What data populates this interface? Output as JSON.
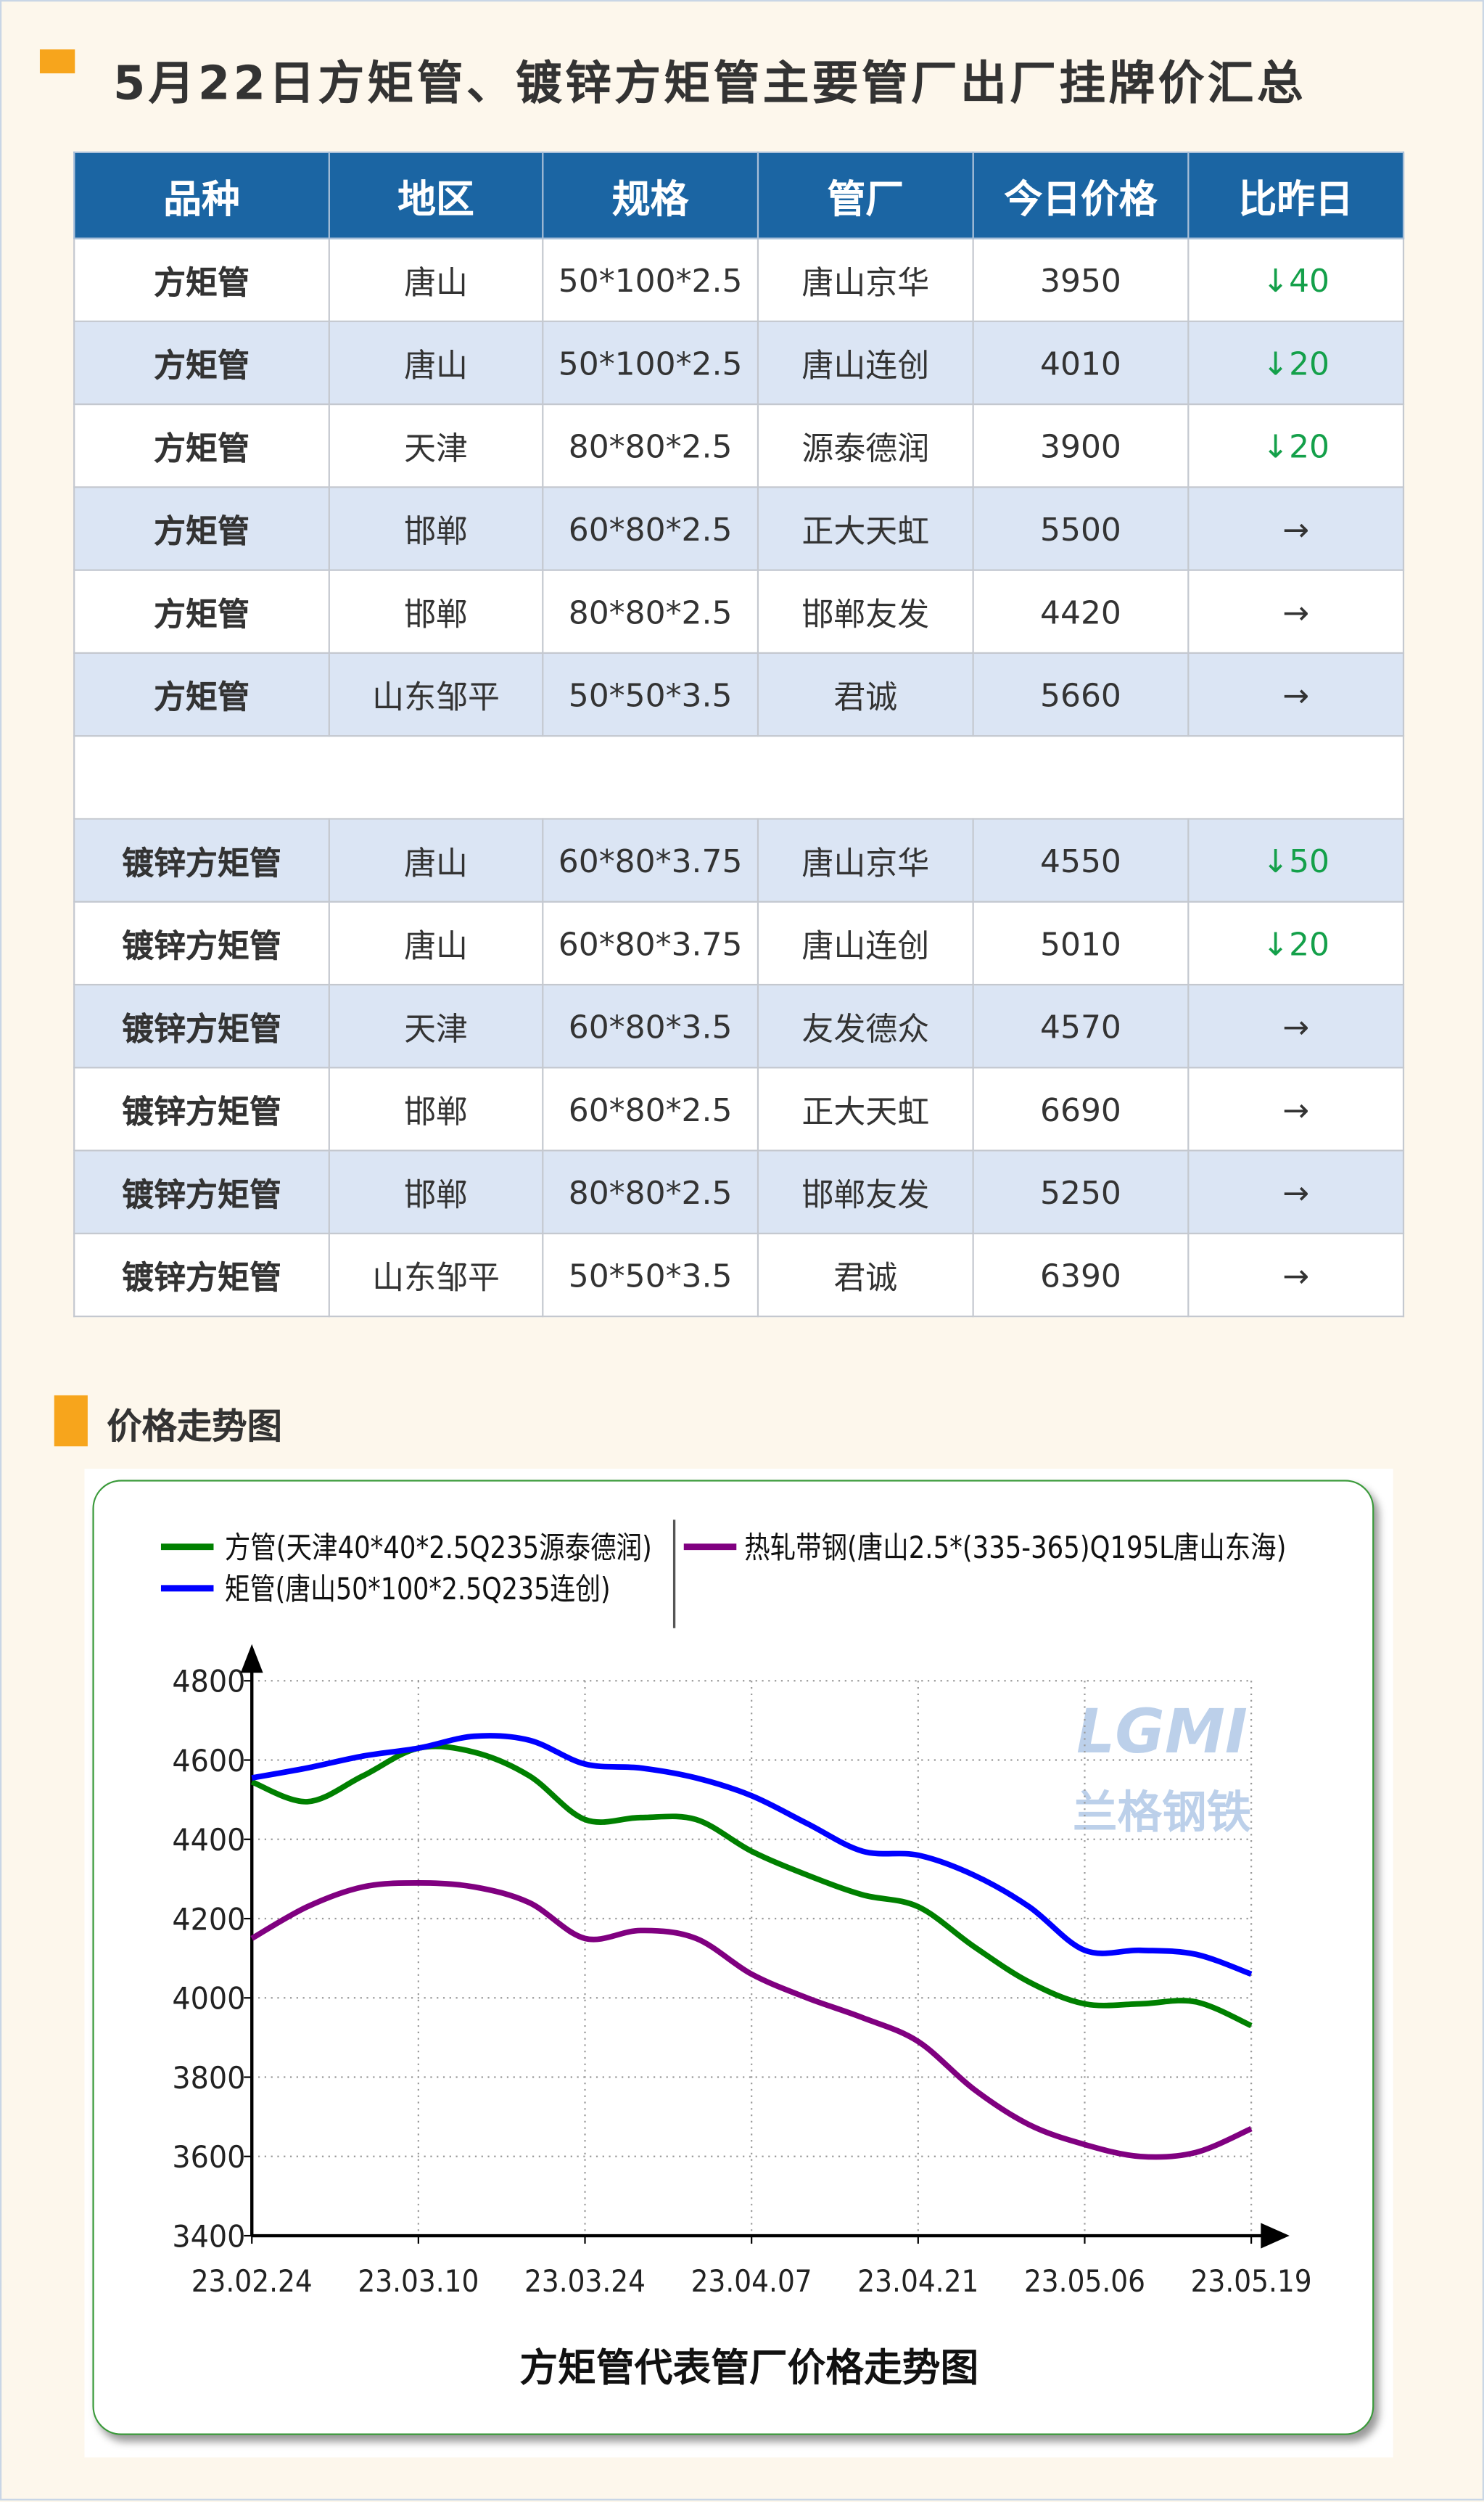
{
  "header": {
    "title": "5月22日方矩管、镀锌方矩管主要管厂出厂挂牌价汇总"
  },
  "table": {
    "header": [
      "品种",
      "地区",
      "规格",
      "管厂",
      "今日价格",
      "比昨日"
    ],
    "groups": [
      {
        "rows": [
          [
            "方矩管",
            "唐山",
            "50*100*2.5",
            "唐山京华",
            "3950",
            "↓40"
          ],
          [
            "方矩管",
            "唐山",
            "50*100*2.5",
            "唐山连创",
            "4010",
            "↓20"
          ],
          [
            "方矩管",
            "天津",
            "80*80*2.5",
            "源泰德润",
            "3900",
            "↓20"
          ],
          [
            "方矩管",
            "邯郸",
            "60*80*2.5",
            "正大天虹",
            "5500",
            "→"
          ],
          [
            "方矩管",
            "邯郸",
            "80*80*2.5",
            "邯郸友发",
            "4420",
            "→"
          ],
          [
            "方矩管",
            "山东邹平",
            "50*50*3.5",
            "君诚",
            "5660",
            "→"
          ]
        ]
      },
      {
        "rows": [
          [
            "镀锌方矩管",
            "唐山",
            "60*80*3.75",
            "唐山京华",
            "4550",
            "↓50"
          ],
          [
            "镀锌方矩管",
            "唐山",
            "60*80*3.75",
            "唐山连创",
            "5010",
            "↓20"
          ],
          [
            "镀锌方矩管",
            "天津",
            "60*80*3.5",
            "友发德众",
            "4570",
            "→"
          ],
          [
            "镀锌方矩管",
            "邯郸",
            "60*80*2.5",
            "正大天虹",
            "6690",
            "→"
          ],
          [
            "镀锌方矩管",
            "邯郸",
            "80*80*2.5",
            "邯郸友发",
            "5250",
            "→"
          ],
          [
            "镀锌方矩管",
            "山东邹平",
            "50*50*3.5",
            "君诚",
            "6390",
            "→"
          ]
        ]
      }
    ]
  },
  "section": {
    "title": "价格走势图"
  },
  "chart_data": {
    "type": "line",
    "title": "方矩管代表管厂价格走势图",
    "watermark_logo": "LGMI",
    "watermark_text": "兰格钢铁",
    "categories": [
      "23.02.24",
      null,
      null,
      "23.03.10",
      null,
      null,
      "23.03.24",
      null,
      null,
      "23.04.07",
      null,
      null,
      "23.04.21",
      null,
      null,
      "23.05.06",
      null,
      null,
      "23.05.19"
    ],
    "series": [
      {
        "name": "方管(天津40*40*2.5Q235源泰德润)",
        "color": "#008000",
        "values": [
          4545,
          4495,
          4560,
          4630,
          4620,
          4560,
          4450,
          4455,
          4450,
          4370,
          4310,
          4260,
          4230,
          4130,
          4040,
          3985,
          3985,
          3990,
          3930
        ]
      },
      {
        "name": "矩管(唐山50*100*2.5Q235连创)",
        "color": "#0000ff",
        "values": [
          4555,
          4580,
          4610,
          4630,
          4660,
          4650,
          4590,
          4580,
          4555,
          4510,
          4440,
          4370,
          4360,
          4310,
          4230,
          4120,
          4120,
          4110,
          4060
        ]
      },
      {
        "name": "热轧带钢(唐山2.5*(335-365)Q195L唐山东海)",
        "color": "#800080",
        "values": [
          4150,
          4230,
          4280,
          4290,
          4280,
          4240,
          4150,
          4170,
          4150,
          4060,
          4000,
          3950,
          3890,
          3770,
          3680,
          3630,
          3600,
          3610,
          3670
        ]
      }
    ],
    "ylim": [
      3400,
      4800
    ],
    "yticks": [
      3400,
      3600,
      3800,
      4000,
      4200,
      4400,
      4600,
      4800
    ],
    "grid": true
  }
}
